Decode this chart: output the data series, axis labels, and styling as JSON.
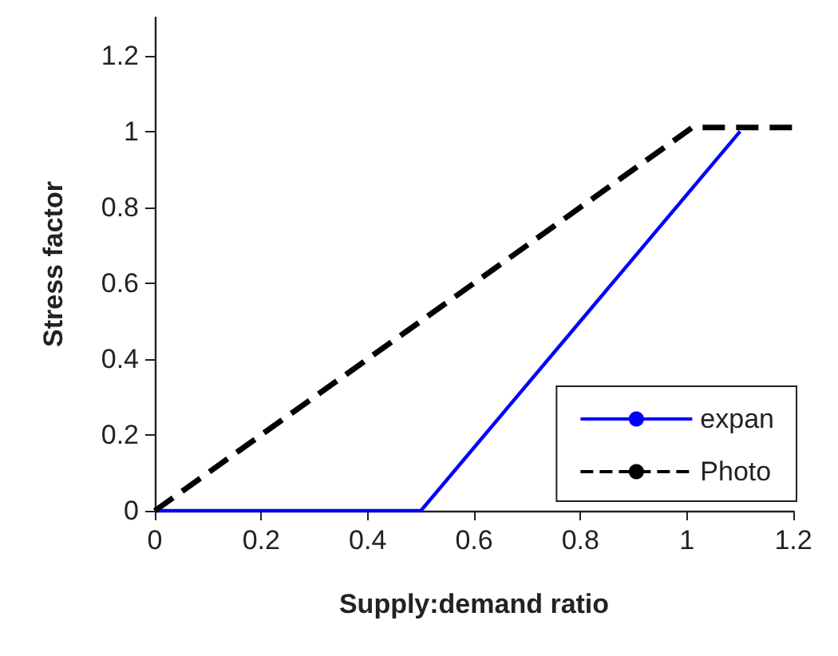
{
  "chart_data": {
    "type": "line",
    "xlabel": "Supply:demand ratio",
    "ylabel": "Stress factor",
    "xlim": [
      0,
      1.2
    ],
    "xticks": [
      0,
      0.2,
      0.4,
      0.6,
      0.8,
      1,
      1.2
    ],
    "ylim": [
      0,
      1.3
    ],
    "yticks": [
      0,
      0.2,
      0.4,
      0.6,
      0.8,
      1,
      1.2
    ],
    "grid": false,
    "legend": "bottom right",
    "marker": "none",
    "series": [
      {
        "name": "expan",
        "color": "#0000ff",
        "x": [
          0,
          0.5,
          1.1
        ],
        "values": [
          0,
          0,
          1
        ],
        "line_style": "solid"
      },
      {
        "name": "Photo",
        "color": "#000000",
        "x": [
          0,
          1.01,
          1.2
        ],
        "values": [
          0,
          1.01,
          1.01
        ],
        "line_style": "dashed"
      }
    ]
  }
}
